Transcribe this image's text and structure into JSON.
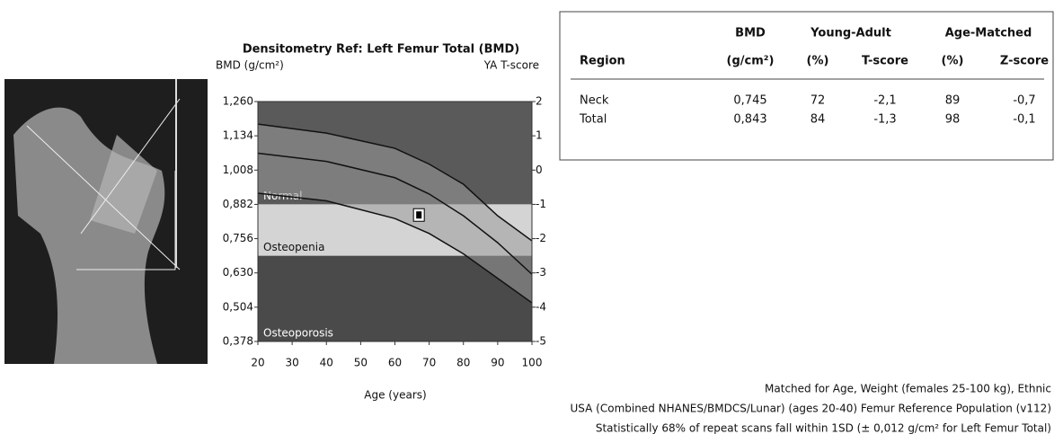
{
  "chart_data": {
    "type": "line",
    "title": "Densitometry Ref: Left Femur Total (BMD)",
    "ylabel": "BMD (g/cm²)",
    "y2label": "YA T-score",
    "xlabel": "Age (years)",
    "x": [
      20,
      40,
      60,
      70,
      80,
      90,
      100
    ],
    "series": [
      {
        "color": "#111111",
        "values": [
          1.177,
          1.144,
          1.088,
          1.03,
          0.956,
          0.84,
          0.748
        ]
      },
      {
        "color": "#111111",
        "values": [
          1.07,
          1.04,
          0.98,
          0.92,
          0.84,
          0.741,
          0.625
        ]
      },
      {
        "color": "#111111",
        "values": [
          0.923,
          0.895,
          0.83,
          0.775,
          0.7,
          0.61,
          0.52
        ]
      }
    ],
    "patient": {
      "x": 67,
      "y": 0.843
    },
    "bands": [
      {
        "label": "Normal",
        "y2range": [
          -1,
          2
        ],
        "color": "#5a5a5a"
      },
      {
        "label": "Osteopenia",
        "y2range": [
          -2.5,
          -1
        ],
        "color": "#d4d4d4"
      },
      {
        "label": "Osteoporosis",
        "y2range": [
          -5,
          -2.5
        ],
        "color": "#4a4a4a"
      }
    ],
    "xlim": [
      20,
      100
    ],
    "xticks": [
      20,
      30,
      40,
      50,
      60,
      70,
      80,
      90,
      100
    ],
    "ylim": [
      0.378,
      1.26
    ],
    "yticks": [
      {
        "value": 0.378,
        "label": "0,378"
      },
      {
        "value": 0.504,
        "label": "0,504"
      },
      {
        "value": 0.63,
        "label": "0,630"
      },
      {
        "value": 0.756,
        "label": "0,756"
      },
      {
        "value": 0.882,
        "label": "0,882"
      },
      {
        "value": 1.008,
        "label": "1,008"
      },
      {
        "value": 1.134,
        "label": "1,134"
      },
      {
        "value": 1.26,
        "label": "1,260"
      }
    ],
    "y2lim": [
      -5,
      2
    ],
    "y2ticks": [
      -5,
      -4,
      -3,
      -2,
      -1,
      0,
      1,
      2
    ]
  },
  "table": {
    "group_headers": [
      "BMD",
      "Young-Adult",
      "Age-Matched"
    ],
    "headers": [
      "Region",
      "(g/cm²)",
      "(%)",
      "T-score",
      "(%)",
      "Z-score"
    ],
    "rows": [
      [
        "Neck",
        "0,745",
        "72",
        "-2,1",
        "89",
        "-0,7"
      ],
      [
        "Total",
        "0,843",
        "84",
        "-1,3",
        "98",
        "-0,1"
      ]
    ]
  },
  "footer": [
    "Matched for Age, Weight (females 25-100 kg), Ethnic",
    "USA (Combined NHANES/BMDCS/Lunar) (ages 20-40) Femur Reference Population (v112)",
    "Statistically 68% of repeat scans fall within 1SD (± 0,012 g/cm² for Left Femur Total)"
  ]
}
